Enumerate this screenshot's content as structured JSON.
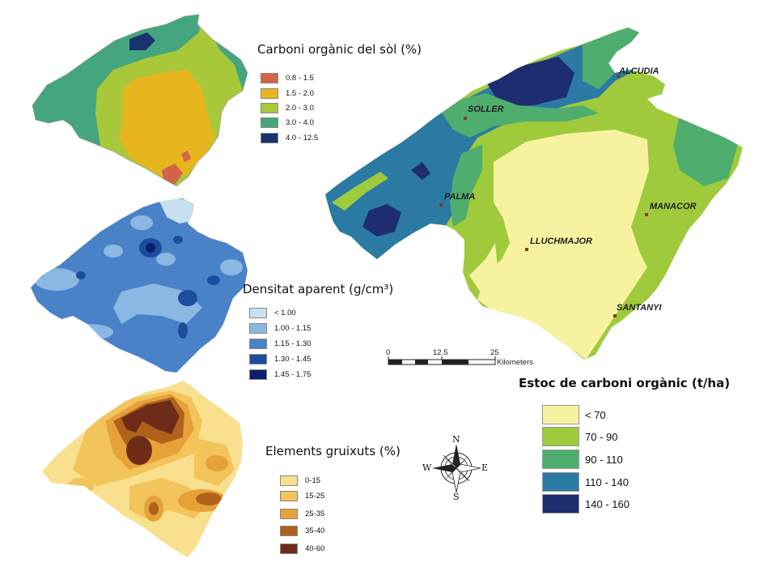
{
  "maps": {
    "carbon": {
      "title": "Carboni orgànic del sòl (%)",
      "classes": [
        {
          "label": "0.8 - 1.5",
          "color": "#d2644a"
        },
        {
          "label": "1.5 - 2.0",
          "color": "#e7b61e"
        },
        {
          "label": "2.0 - 3.0",
          "color": "#a8c83a"
        },
        {
          "label": "3.0 - 4.0",
          "color": "#45a57e"
        },
        {
          "label": "4.0 - 12.5",
          "color": "#16336e"
        }
      ]
    },
    "density": {
      "title": "Densitat aparent (g/cm³)",
      "classes": [
        {
          "label": "< 1.00",
          "color": "#c8e0ef"
        },
        {
          "label": "1.00 - 1.15",
          "color": "#8ab8e2"
        },
        {
          "label": "1.15 - 1.30",
          "color": "#4a82c8"
        },
        {
          "label": "1.30 - 1.45",
          "color": "#1c4c9e"
        },
        {
          "label": "1.45 - 1.75",
          "color": "#0c1e6e"
        }
      ]
    },
    "coarse": {
      "title": "Elements gruixuts (%)",
      "classes": [
        {
          "label": "0-15",
          "color": "#f8e08e"
        },
        {
          "label": "15-25",
          "color": "#f2c45a"
        },
        {
          "label": "25-35",
          "color": "#e6a238"
        },
        {
          "label": "35-40",
          "color": "#b0621c"
        },
        {
          "label": "40-60",
          "color": "#6e2c18"
        }
      ]
    },
    "stock": {
      "title": "Estoc de carboni orgànic (t/ha)",
      "classes": [
        {
          "label": "< 70",
          "color": "#f7f2a0"
        },
        {
          "label": "70 - 90",
          "color": "#9fca3c"
        },
        {
          "label": "90 - 110",
          "color": "#4fae6e"
        },
        {
          "label": "110 - 140",
          "color": "#2a7aa4"
        },
        {
          "label": "140 - 160",
          "color": "#1e2c70"
        }
      ],
      "cities": [
        "ALCUDIA",
        "SOLLER",
        "PALMA",
        "MANACOR",
        "LLUCHMAJOR",
        "SANTANYI"
      ]
    }
  },
  "scale_bar": {
    "ticks": [
      "0",
      "12.5",
      "25"
    ],
    "unit": "Kilometers"
  },
  "compass": {
    "north": "N",
    "south": "S",
    "east": "E",
    "west": "W"
  }
}
